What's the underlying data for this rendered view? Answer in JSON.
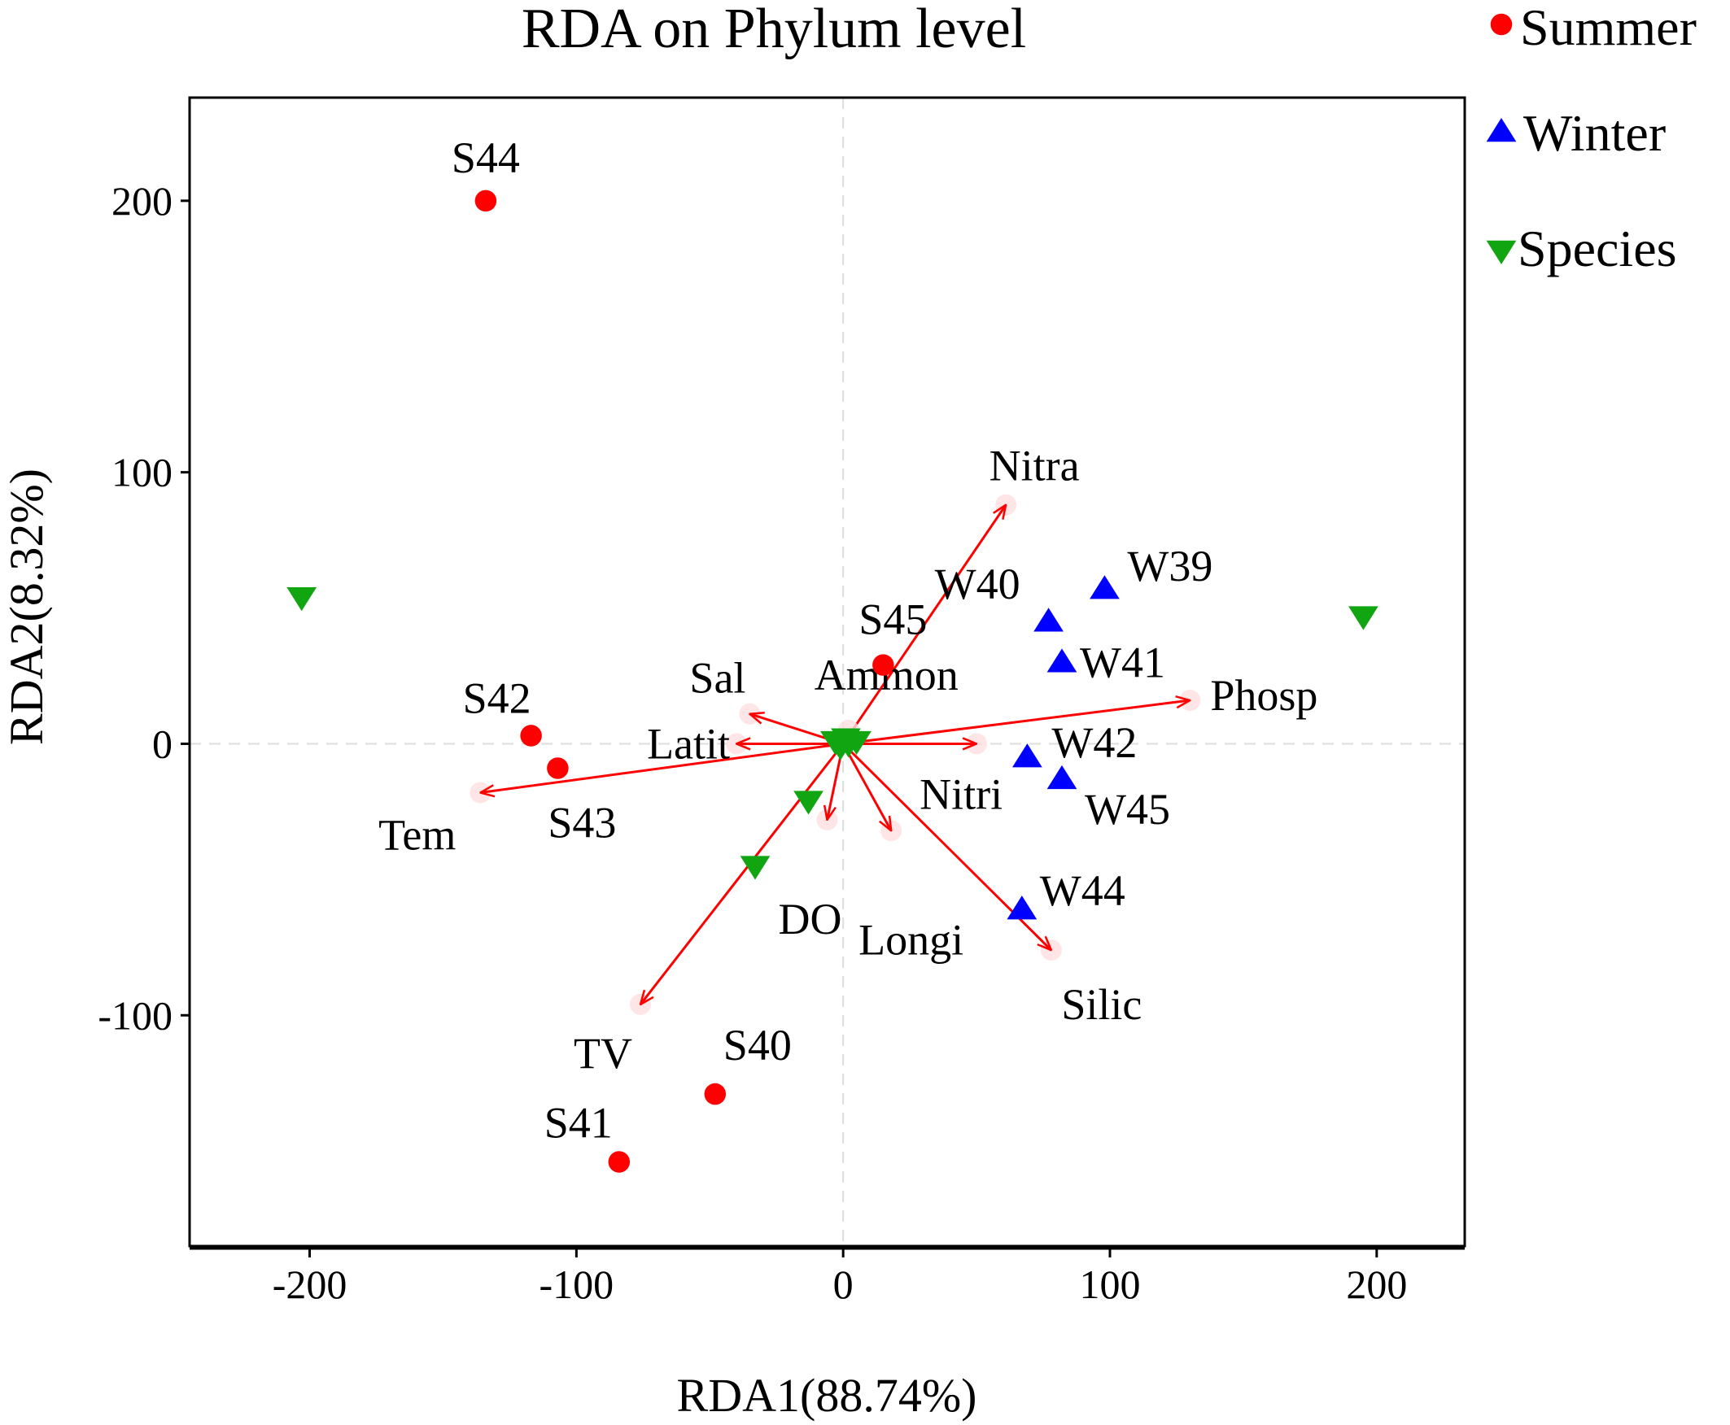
{
  "chart_data": {
    "type": "scatter",
    "title": "RDA on Phylum level",
    "xlabel": "RDA1(88.74%)",
    "ylabel": "RDA2(8.32%)",
    "xlim": [
      -245,
      233
    ],
    "ylim": [
      -185,
      238
    ],
    "xticks": [
      -200,
      -100,
      0,
      100,
      200
    ],
    "yticks": [
      -100,
      0,
      100,
      200
    ],
    "grid": false,
    "zero_lines": true,
    "legend_position": "top-right, outside plot",
    "series": [
      {
        "name": "Summer",
        "marker": "circle",
        "color": "#ff0000",
        "points": [
          {
            "label": "S44",
            "x": -134,
            "y": 200
          },
          {
            "label": "S45",
            "x": 15,
            "y": 29
          },
          {
            "label": "S42",
            "x": -117,
            "y": 3
          },
          {
            "label": "S43",
            "x": -107,
            "y": -9
          },
          {
            "label": "S40",
            "x": -48,
            "y": -129
          },
          {
            "label": "S41",
            "x": -84,
            "y": -154
          }
        ]
      },
      {
        "name": "Winter",
        "marker": "triangle-up",
        "color": "#0000ff",
        "points": [
          {
            "label": "W39",
            "x": 98,
            "y": 57
          },
          {
            "label": "W40",
            "x": 77,
            "y": 45
          },
          {
            "label": "W41",
            "x": 82,
            "y": 30
          },
          {
            "label": "W42",
            "x": 69,
            "y": -5
          },
          {
            "label": "W45",
            "x": 82,
            "y": -13
          },
          {
            "label": "W44",
            "x": 67,
            "y": -61
          }
        ]
      },
      {
        "name": "Species",
        "marker": "triangle-down",
        "color": "#12a512",
        "points": [
          {
            "label": "",
            "x": -203,
            "y": 54
          },
          {
            "label": "",
            "x": 195,
            "y": 47
          },
          {
            "label": "",
            "x": -13,
            "y": -21
          },
          {
            "label": "",
            "x": -33,
            "y": -45
          },
          {
            "label": "",
            "x": -3,
            "y": 1
          },
          {
            "label": "",
            "x": 2,
            "y": 0
          },
          {
            "label": "",
            "x": 5,
            "y": 1
          },
          {
            "label": "",
            "x": -1,
            "y": -1
          },
          {
            "label": "",
            "x": 1,
            "y": 2
          }
        ]
      }
    ],
    "arrows": {
      "color": "#ff0000",
      "items": [
        {
          "label": "Nitra",
          "x": 61,
          "y": 88
        },
        {
          "label": "Phosp",
          "x": 130,
          "y": 16
        },
        {
          "label": "Tem",
          "x": -136,
          "y": -18
        },
        {
          "label": "TV",
          "x": -76,
          "y": -96
        },
        {
          "label": "Silic",
          "x": 78,
          "y": -76
        },
        {
          "label": "Sal",
          "x": -35,
          "y": 11
        },
        {
          "label": "Latit",
          "x": -40,
          "y": 0
        },
        {
          "label": "Ammon",
          "x": 2,
          "y": 5
        },
        {
          "label": "Nitri",
          "x": 50,
          "y": 0
        },
        {
          "label": "DO",
          "x": -6,
          "y": -28
        },
        {
          "label": "Longi",
          "x": 18,
          "y": -32
        }
      ]
    }
  }
}
